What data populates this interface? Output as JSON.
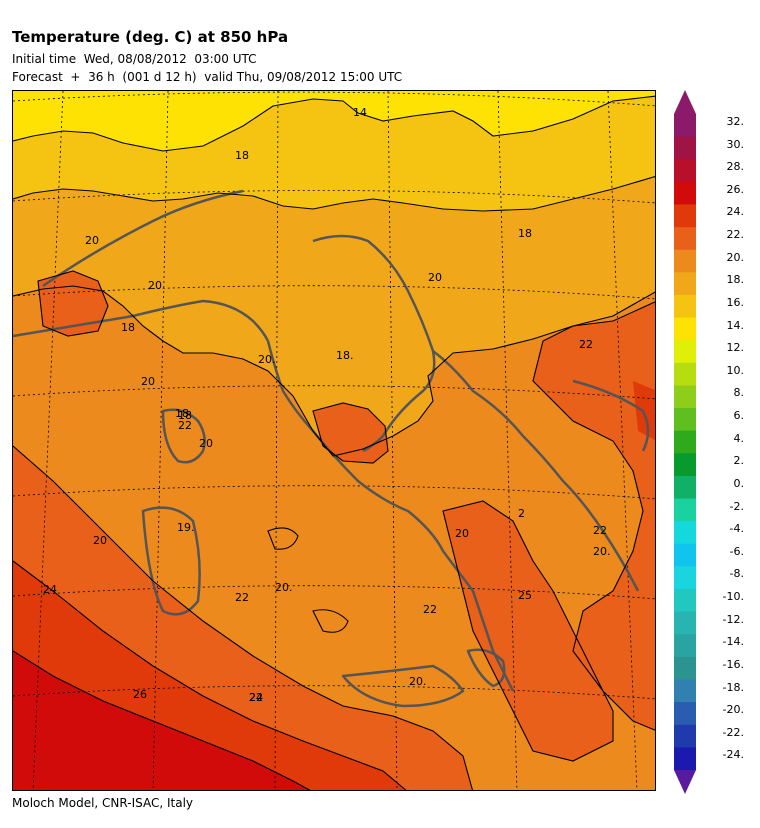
{
  "header": {
    "title": "Temperature (deg. C) at 850 hPa",
    "initial_time": "Initial time  Wed, 08/08/2012  03:00 UTC",
    "forecast": "Forecast  +  36 h  (001 d 12 h)  valid Thu, 09/08/2012 15:00 UTC"
  },
  "footer": "Moloch Model, CNR-ISAC, Italy",
  "colorbar": {
    "labels": [
      "32.",
      "30.",
      "28.",
      "26.",
      "24.",
      "22.",
      "20.",
      "18.",
      "16.",
      "14.",
      "12.",
      "10.",
      "8.",
      "6.",
      "4.",
      "2.",
      "0.",
      "-2.",
      "-4.",
      "-6.",
      "-8.",
      "-10.",
      "-12.",
      "-14.",
      "-16.",
      "-18.",
      "-20.",
      "-22.",
      "-24."
    ],
    "colors": [
      "#8b1a6b",
      "#a01445",
      "#b8102a",
      "#d10a0a",
      "#e03a0a",
      "#e8601a",
      "#ec8a1e",
      "#f0a81a",
      "#f5c412",
      "#fde203",
      "#e0ef08",
      "#b6dd10",
      "#8ecd1a",
      "#5ebf1e",
      "#2eaa1c",
      "#079a2c",
      "#10b066",
      "#1ad2a0",
      "#14d8dc",
      "#10c4ee",
      "#1ad4de",
      "#20c8c0",
      "#28b4b0",
      "#2aa4a2",
      "#2c9490",
      "#3080b0",
      "#2a5cb0",
      "#1e3aac",
      "#1a1aae"
    ],
    "arrow_top_color": "#8b1a6b",
    "arrow_bottom_color": "#5a1a9e"
  },
  "map": {
    "contour_labels": [
      "14",
      "18",
      "20",
      "20",
      "18",
      "20",
      "20.",
      "18.",
      "20",
      "18",
      "22",
      "20",
      "18",
      "20",
      "22",
      "22",
      "20.",
      "19.",
      "2",
      "22",
      "20.",
      "24",
      "22",
      "20.",
      "25",
      "26",
      "24",
      "20",
      "22",
      "18"
    ]
  }
}
